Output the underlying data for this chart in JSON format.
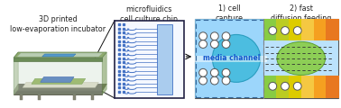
{
  "bg_color": "#ffffff",
  "label1": "3D printed\nlow-evaporation incubator",
  "label2": "microfluidics\ncell culture chip",
  "label3": "1) cell\ncapture",
  "label4": "2) fast\ndiffusion feeding",
  "label_media": "media channel",
  "colors": {
    "top_green": "#8faa6e",
    "side_green": "#6b8c57",
    "base_dark": "#5a6a4a",
    "chip_blue": "#4472c4",
    "light_blue_bg": "#87CEFA",
    "cyan_oval": "#56c8e8",
    "yellow": "#f5c842",
    "orange": "#e87820",
    "grad_green": "#88cc44",
    "white": "#ffffff",
    "black": "#111111",
    "dark_gray": "#555555",
    "mid_gray": "#777777",
    "media_text": "#1155aa"
  }
}
